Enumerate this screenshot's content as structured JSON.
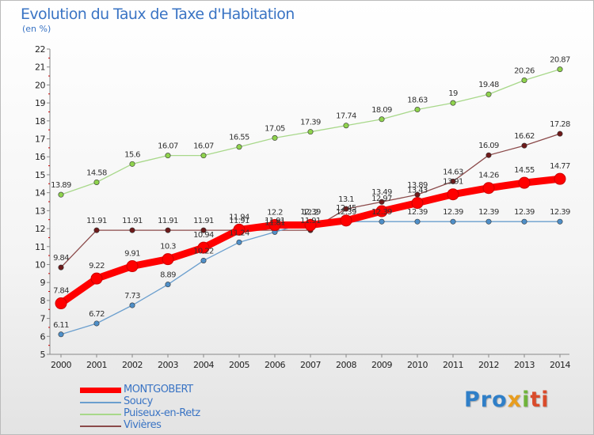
{
  "title": "Evolution du Taux de Taxe d'Habitation",
  "subtitle": "(en %)",
  "logo": [
    "Pro",
    "x",
    "i",
    "ti"
  ],
  "chart_data": {
    "type": "line",
    "title": "Evolution du Taux de Taxe d'Habitation",
    "ylabel": "(en %)",
    "xlabel": "",
    "ylim": [
      5,
      22
    ],
    "yticks": [
      "5",
      "6",
      "7",
      "8",
      "9",
      "10",
      "11",
      "12",
      "13",
      "14",
      "15",
      "16",
      "17",
      "18",
      "19",
      "20",
      "21",
      "22"
    ],
    "x": [
      "2000",
      "2001",
      "2002",
      "2003",
      "2004",
      "2005",
      "2006",
      "2007",
      "2008",
      "2009",
      "2010",
      "2011",
      "2012",
      "2013",
      "2014"
    ],
    "grid": false,
    "legend_position": "bottom-left",
    "series": [
      {
        "name": "Puiseux-en-Retz",
        "color": "#8fd34d",
        "line_color": "#a8d88a",
        "values": [
          13.89,
          14.58,
          15.6,
          16.07,
          16.07,
          16.55,
          17.05,
          17.39,
          17.74,
          18.09,
          18.63,
          19,
          19.48,
          20.26,
          20.87
        ],
        "labels": [
          "13.89",
          "14.58",
          "15.6",
          "16.07",
          "16.07",
          "16.55",
          "17.05",
          "17.39",
          "17.74",
          "18.09",
          "18.63",
          "19",
          "19.48",
          "20.26",
          "20.87"
        ]
      },
      {
        "name": "Vivières",
        "color": "#6e1a1a",
        "line_color": "#8b4a4a",
        "values": [
          9.84,
          11.91,
          11.91,
          11.91,
          11.91,
          11.91,
          11.91,
          11.91,
          13.1,
          13.49,
          13.89,
          14.63,
          16.09,
          16.62,
          17.28
        ],
        "labels": [
          "9.84",
          "11.91",
          "11.91",
          "11.91",
          "11.91",
          "11.91",
          "11.91",
          "11.91",
          "13.1",
          "13.49",
          "13.89",
          "14.63",
          "16.09",
          "16.62",
          "17.28"
        ]
      },
      {
        "name": "Soucy",
        "color": "#4f8fc8",
        "line_color": "#6b9fce",
        "values": [
          6.11,
          6.72,
          7.73,
          8.89,
          10.22,
          11.24,
          11.81,
          12.39,
          12.39,
          12.39,
          12.39,
          12.39,
          12.39,
          12.39,
          12.39
        ],
        "labels": [
          "6.11",
          "6.72",
          "7.73",
          "8.89",
          "10.22",
          "11.24",
          "11.81",
          "12.39",
          "12.39",
          "12.39",
          "12.39",
          "12.39",
          "12.39",
          "12.39",
          "12.39"
        ]
      },
      {
        "name": "MONTGOBERT",
        "color": "#ff0000",
        "line_color": "#ff0000",
        "values": [
          7.84,
          9.22,
          9.91,
          10.3,
          10.94,
          11.94,
          12.2,
          12.2,
          12.45,
          12.97,
          13.43,
          13.91,
          14.26,
          14.55,
          14.77
        ],
        "labels": [
          "7.84",
          "9.22",
          "9.91",
          "10.3",
          "10.94",
          "11.94",
          "12.2",
          "12.2",
          "12.45",
          "12.97",
          "13.43",
          "13.91",
          "14.26",
          "14.55",
          "14.77"
        ]
      }
    ],
    "legend": [
      "MONTGOBERT",
      "Soucy",
      "Puiseux-en-Retz",
      "Vivières"
    ]
  }
}
